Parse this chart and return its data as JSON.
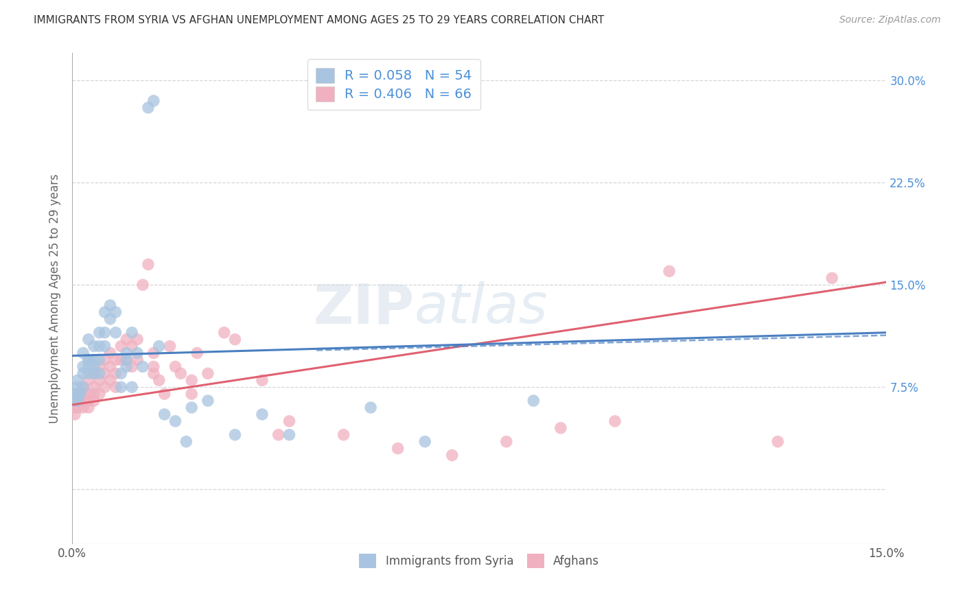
{
  "title": "IMMIGRANTS FROM SYRIA VS AFGHAN UNEMPLOYMENT AMONG AGES 25 TO 29 YEARS CORRELATION CHART",
  "source": "Source: ZipAtlas.com",
  "ylabel": "Unemployment Among Ages 25 to 29 years",
  "xlim": [
    0.0,
    0.15
  ],
  "ylim": [
    -0.04,
    0.32
  ],
  "series": [
    {
      "label": "Immigrants from Syria",
      "R": 0.058,
      "N": 54,
      "color": "#a8c4e0",
      "line_color": "#4a7fc1",
      "line_style": "-",
      "x": [
        0.0005,
        0.0005,
        0.001,
        0.001,
        0.001,
        0.001,
        0.0015,
        0.002,
        0.002,
        0.002,
        0.002,
        0.003,
        0.003,
        0.003,
        0.003,
        0.003,
        0.004,
        0.004,
        0.004,
        0.004,
        0.005,
        0.005,
        0.005,
        0.005,
        0.006,
        0.006,
        0.006,
        0.007,
        0.007,
        0.008,
        0.008,
        0.009,
        0.009,
        0.01,
        0.01,
        0.01,
        0.011,
        0.011,
        0.012,
        0.013,
        0.014,
        0.015,
        0.016,
        0.017,
        0.019,
        0.021,
        0.022,
        0.025,
        0.03,
        0.035,
        0.04,
        0.055,
        0.065,
        0.085
      ],
      "y": [
        0.065,
        0.07,
        0.075,
        0.08,
        0.07,
        0.065,
        0.07,
        0.09,
        0.1,
        0.085,
        0.075,
        0.11,
        0.09,
        0.095,
        0.085,
        0.095,
        0.105,
        0.09,
        0.095,
        0.085,
        0.115,
        0.105,
        0.095,
        0.085,
        0.13,
        0.105,
        0.115,
        0.135,
        0.125,
        0.13,
        0.115,
        0.085,
        0.075,
        0.09,
        0.1,
        0.095,
        0.115,
        0.075,
        0.1,
        0.09,
        0.28,
        0.285,
        0.105,
        0.055,
        0.05,
        0.035,
        0.06,
        0.065,
        0.04,
        0.055,
        0.04,
        0.06,
        0.035,
        0.065
      ],
      "trend_x": [
        0.0,
        0.15
      ],
      "trend_y": [
        0.098,
        0.115
      ]
    },
    {
      "label": "Afghans",
      "R": 0.406,
      "N": 66,
      "color": "#f0b0c0",
      "line_color": "#e06070",
      "line_style": "-",
      "x": [
        0.0005,
        0.0005,
        0.001,
        0.001,
        0.001,
        0.0015,
        0.002,
        0.002,
        0.002,
        0.002,
        0.003,
        0.003,
        0.003,
        0.003,
        0.004,
        0.004,
        0.004,
        0.004,
        0.005,
        0.005,
        0.005,
        0.006,
        0.006,
        0.006,
        0.007,
        0.007,
        0.007,
        0.008,
        0.008,
        0.008,
        0.009,
        0.009,
        0.01,
        0.01,
        0.011,
        0.011,
        0.012,
        0.012,
        0.013,
        0.014,
        0.015,
        0.015,
        0.015,
        0.016,
        0.017,
        0.018,
        0.019,
        0.02,
        0.022,
        0.022,
        0.023,
        0.025,
        0.028,
        0.03,
        0.035,
        0.038,
        0.04,
        0.05,
        0.06,
        0.07,
        0.08,
        0.09,
        0.1,
        0.11,
        0.13,
        0.14
      ],
      "y": [
        0.055,
        0.06,
        0.065,
        0.07,
        0.06,
        0.065,
        0.07,
        0.075,
        0.065,
        0.06,
        0.08,
        0.07,
        0.065,
        0.06,
        0.085,
        0.075,
        0.07,
        0.065,
        0.09,
        0.08,
        0.07,
        0.095,
        0.085,
        0.075,
        0.1,
        0.09,
        0.08,
        0.095,
        0.085,
        0.075,
        0.105,
        0.095,
        0.11,
        0.095,
        0.105,
        0.09,
        0.11,
        0.095,
        0.15,
        0.165,
        0.085,
        0.1,
        0.09,
        0.08,
        0.07,
        0.105,
        0.09,
        0.085,
        0.08,
        0.07,
        0.1,
        0.085,
        0.115,
        0.11,
        0.08,
        0.04,
        0.05,
        0.04,
        0.03,
        0.025,
        0.035,
        0.045,
        0.05,
        0.16,
        0.035,
        0.155
      ],
      "trend_x": [
        0.0,
        0.15
      ],
      "trend_y": [
        0.062,
        0.152
      ]
    }
  ],
  "watermark_zip": "ZIP",
  "watermark_atlas": "atlas",
  "background_color": "#ffffff",
  "grid_color": "#cccccc",
  "title_color": "#333333",
  "ytick_right_color": "#4a90d9",
  "ytick_bottom_color": "#555555"
}
